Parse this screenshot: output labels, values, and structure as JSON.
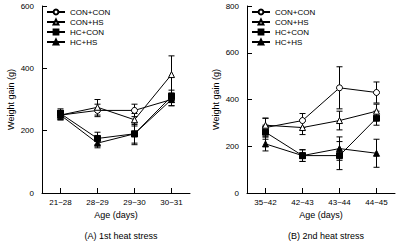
{
  "chart_data": [
    {
      "type": "line",
      "title": "(A) 1st heat stress",
      "x_label": "Age (days)",
      "y_label": "Weight gain (g)",
      "categories": [
        "21~28",
        "28~29",
        "29~30",
        "30~31"
      ],
      "ylim": [
        0,
        600
      ],
      "yticks": [
        0,
        200,
        400,
        600
      ],
      "grid": false,
      "legend": "upper left",
      "series": [
        {
          "name": "CON+CON",
          "color": "#000000",
          "marker": "open circle",
          "values": [
            250,
            265,
            265,
            300
          ],
          "errors": [
            15,
            20,
            20,
            20
          ]
        },
        {
          "name": "CON+HS",
          "color": "#000000",
          "marker": "open triangle",
          "values": [
            250,
            275,
            235,
            380
          ],
          "errors": [
            15,
            25,
            20,
            60
          ]
        },
        {
          "name": "HC+CON",
          "color": "#000000",
          "marker": "filled square",
          "values": [
            255,
            175,
            190,
            310
          ],
          "errors": [
            15,
            20,
            35,
            20
          ]
        },
        {
          "name": "HC+HS",
          "color": "#000000",
          "marker": "filled triangle",
          "values": [
            250,
            160,
            190,
            300
          ],
          "errors": [
            15,
            15,
            30,
            20
          ]
        }
      ]
    },
    {
      "type": "line",
      "title": "(B) 2nd heat stress",
      "x_label": "Age (days)",
      "y_label": "Weight gain (g)",
      "categories": [
        "35~42",
        "42~43",
        "43~44",
        "44~45"
      ],
      "ylim": [
        0,
        800
      ],
      "yticks": [
        0,
        200,
        400,
        600,
        800
      ],
      "grid": false,
      "legend": "upper left",
      "series": [
        {
          "name": "CON+CON",
          "color": "#000000",
          "marker": "open circle",
          "values": [
            280,
            310,
            450,
            430
          ],
          "errors": [
            40,
            30,
            90,
            45
          ]
        },
        {
          "name": "CON+HS",
          "color": "#000000",
          "marker": "open triangle",
          "values": [
            290,
            280,
            310,
            350
          ],
          "errors": [
            30,
            30,
            40,
            30
          ]
        },
        {
          "name": "HC+CON",
          "color": "#000000",
          "marker": "filled square",
          "values": [
            260,
            160,
            160,
            320
          ],
          "errors": [
            30,
            25,
            60,
            30
          ]
        },
        {
          "name": "HC+HS",
          "color": "#000000",
          "marker": "filled triangle",
          "values": [
            210,
            160,
            190,
            170
          ],
          "errors": [
            30,
            25,
            50,
            60
          ]
        }
      ]
    }
  ]
}
